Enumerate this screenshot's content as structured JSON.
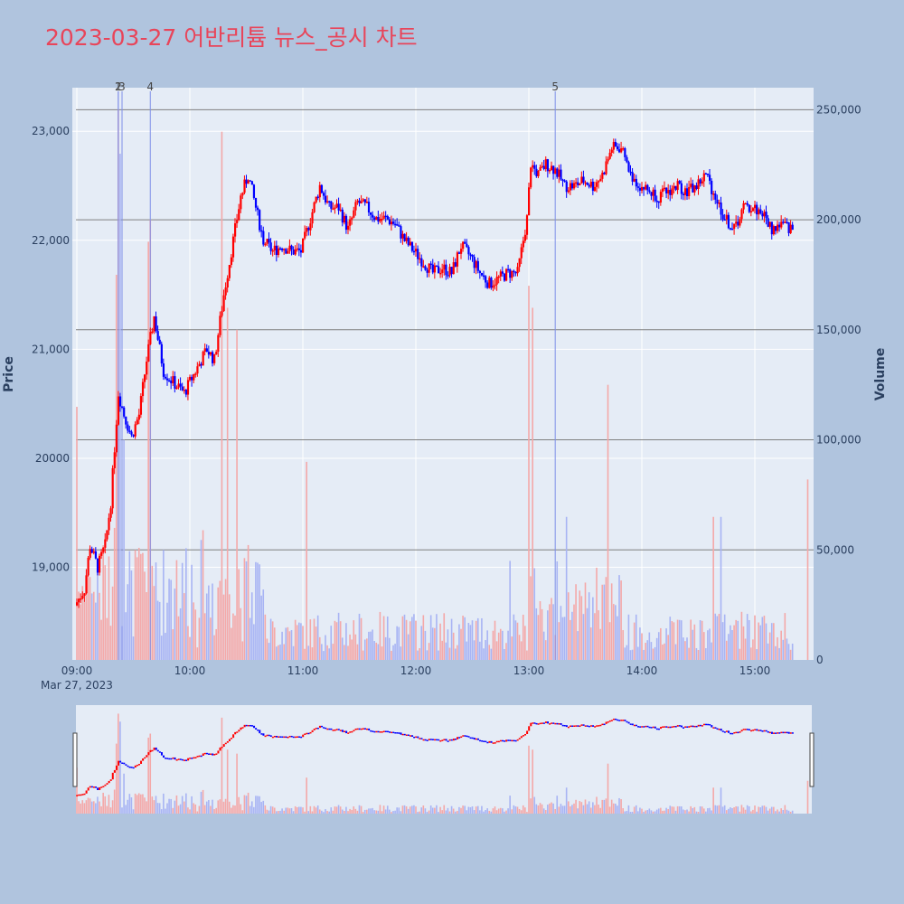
{
  "chart_data": {
    "type": "candlestick",
    "title": "2023-03-27 어반리튬 뉴스_공시 차트",
    "date_label": "Mar 27, 2023",
    "ylabel": "Price",
    "y2label": "Volume",
    "ylim": [
      18150,
      23400
    ],
    "y2lim": [
      0,
      260000
    ],
    "x_range": [
      "09:00",
      "15:30"
    ],
    "price_ticks": [
      "19,000",
      "20000",
      "21,000",
      "22,000",
      "23,000"
    ],
    "price_tick_values": [
      19000,
      20000,
      21000,
      22000,
      23000
    ],
    "volume_ticks": [
      "0",
      "50,000",
      "100,000",
      "150,000",
      "200,000",
      "250,000"
    ],
    "volume_tick_values": [
      0,
      50000,
      100000,
      150000,
      200000,
      250000
    ],
    "time_ticks": [
      "09:00",
      "10:00",
      "11:00",
      "12:00",
      "13:00",
      "14:00",
      "15:00"
    ],
    "grid": true,
    "up_color": "#ff0000",
    "down_color": "#0000ff",
    "event_markers": [
      {
        "label": "1",
        "time": "09:22"
      },
      {
        "label": "2",
        "time": "09:22"
      },
      {
        "label": "3",
        "time": "09:24"
      },
      {
        "label": "4",
        "time": "09:39"
      },
      {
        "label": "5",
        "time": "13:14"
      }
    ],
    "price_path": [
      [
        "09:00",
        18650
      ],
      [
        "09:05",
        18800
      ],
      [
        "09:08",
        19200
      ],
      [
        "09:12",
        19000
      ],
      [
        "09:16",
        19200
      ],
      [
        "09:19",
        19600
      ],
      [
        "09:21",
        20100
      ],
      [
        "09:23",
        20600
      ],
      [
        "09:26",
        20400
      ],
      [
        "09:30",
        20200
      ],
      [
        "09:34",
        20400
      ],
      [
        "09:38",
        20900
      ],
      [
        "09:42",
        21300
      ],
      [
        "09:47",
        20800
      ],
      [
        "09:52",
        20700
      ],
      [
        "09:58",
        20600
      ],
      [
        "10:04",
        20800
      ],
      [
        "10:10",
        21000
      ],
      [
        "10:14",
        20900
      ],
      [
        "10:19",
        21500
      ],
      [
        "10:24",
        22000
      ],
      [
        "10:28",
        22400
      ],
      [
        "10:32",
        22600
      ],
      [
        "10:36",
        22300
      ],
      [
        "10:40",
        22000
      ],
      [
        "10:45",
        21900
      ],
      [
        "10:50",
        21950
      ],
      [
        "10:55",
        21900
      ],
      [
        "11:00",
        21900
      ],
      [
        "11:05",
        22200
      ],
      [
        "11:10",
        22500
      ],
      [
        "11:15",
        22300
      ],
      [
        "11:20",
        22300
      ],
      [
        "11:25",
        22100
      ],
      [
        "11:30",
        22350
      ],
      [
        "11:35",
        22300
      ],
      [
        "11:40",
        22200
      ],
      [
        "11:45",
        22200
      ],
      [
        "11:50",
        22150
      ],
      [
        "11:55",
        22000
      ],
      [
        "12:00",
        21900
      ],
      [
        "12:05",
        21800
      ],
      [
        "12:10",
        21700
      ],
      [
        "12:15",
        21750
      ],
      [
        "12:20",
        21700
      ],
      [
        "12:25",
        21950
      ],
      [
        "12:30",
        21850
      ],
      [
        "12:35",
        21700
      ],
      [
        "12:40",
        21600
      ],
      [
        "12:45",
        21650
      ],
      [
        "12:50",
        21700
      ],
      [
        "12:55",
        21700
      ],
      [
        "13:00",
        22200
      ],
      [
        "13:02",
        22700
      ],
      [
        "13:06",
        22600
      ],
      [
        "13:10",
        22700
      ],
      [
        "13:15",
        22650
      ],
      [
        "13:20",
        22500
      ],
      [
        "13:25",
        22500
      ],
      [
        "13:30",
        22550
      ],
      [
        "13:35",
        22500
      ],
      [
        "13:40",
        22600
      ],
      [
        "13:45",
        22850
      ],
      [
        "13:50",
        22850
      ],
      [
        "13:55",
        22600
      ],
      [
        "14:00",
        22500
      ],
      [
        "14:05",
        22450
      ],
      [
        "14:10",
        22400
      ],
      [
        "14:15",
        22450
      ],
      [
        "14:20",
        22500
      ],
      [
        "14:25",
        22450
      ],
      [
        "14:30",
        22500
      ],
      [
        "14:35",
        22600
      ],
      [
        "14:40",
        22400
      ],
      [
        "14:45",
        22200
      ],
      [
        "14:50",
        22100
      ],
      [
        "14:55",
        22300
      ],
      [
        "15:00",
        22300
      ],
      [
        "15:05",
        22250
      ],
      [
        "15:10",
        22100
      ],
      [
        "15:15",
        22150
      ],
      [
        "15:20",
        22100
      ]
    ],
    "volume_peaks": [
      [
        "09:00",
        115000
      ],
      [
        "09:20",
        60000
      ],
      [
        "09:21",
        175000
      ],
      [
        "09:22",
        250000
      ],
      [
        "09:23",
        230000
      ],
      [
        "09:25",
        100000
      ],
      [
        "09:38",
        190000
      ],
      [
        "09:39",
        200000
      ],
      [
        "10:17",
        240000
      ],
      [
        "10:20",
        160000
      ],
      [
        "10:25",
        150000
      ],
      [
        "11:02",
        90000
      ],
      [
        "12:50",
        45000
      ],
      [
        "13:00",
        170000
      ],
      [
        "13:02",
        160000
      ],
      [
        "13:20",
        65000
      ],
      [
        "13:42",
        125000
      ],
      [
        "14:38",
        65000
      ],
      [
        "14:42",
        65000
      ],
      [
        "15:30",
        82000
      ]
    ]
  }
}
